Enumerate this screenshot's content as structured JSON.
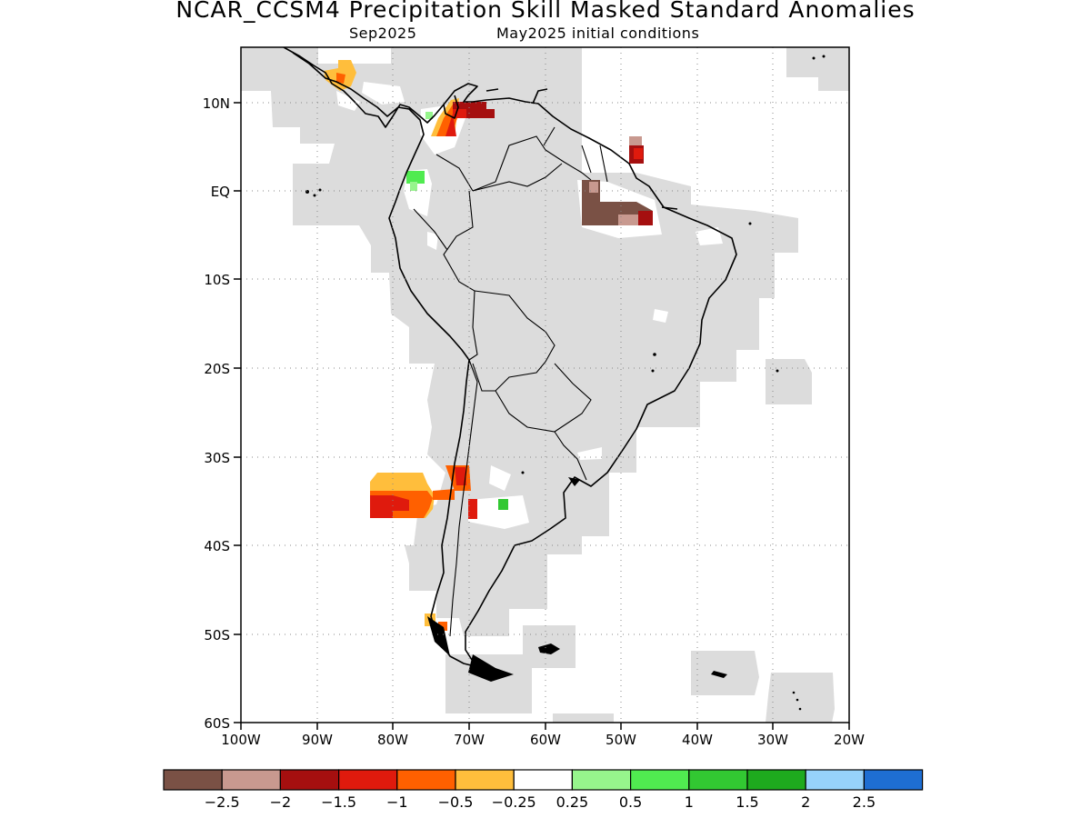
{
  "header": {
    "title": "NCAR_CCSM4 Precipitation Skill Masked Standard Anomalies",
    "valid_month": "Sep2025",
    "init_conditions": "May2025 initial conditions"
  },
  "map": {
    "region": "South America",
    "lat_labels": [
      "10N",
      "EQ",
      "10S",
      "20S",
      "30S",
      "40S",
      "50S",
      "60S"
    ],
    "lon_labels": [
      "100W",
      "90W",
      "80W",
      "70W",
      "60W",
      "50W",
      "40W",
      "30W",
      "20W"
    ],
    "mask_color": "#dcdcdc",
    "grid": "dotted"
  },
  "legend": {
    "colors": [
      "#7a5145",
      "#c8998f",
      "#a50f0f",
      "#df1a0d",
      "#ff6000",
      "#ffbe3c",
      "#ffffff",
      "#96f58c",
      "#50eb50",
      "#32c832",
      "#1eaa1e",
      "#96d2fa",
      "#1e6ed2"
    ],
    "labels": [
      "−2.5",
      "−2",
      "−1.5",
      "−1",
      "−0.5",
      "−0.25",
      "0.25",
      "0.5",
      "1",
      "1.5",
      "2",
      "2.5"
    ]
  }
}
